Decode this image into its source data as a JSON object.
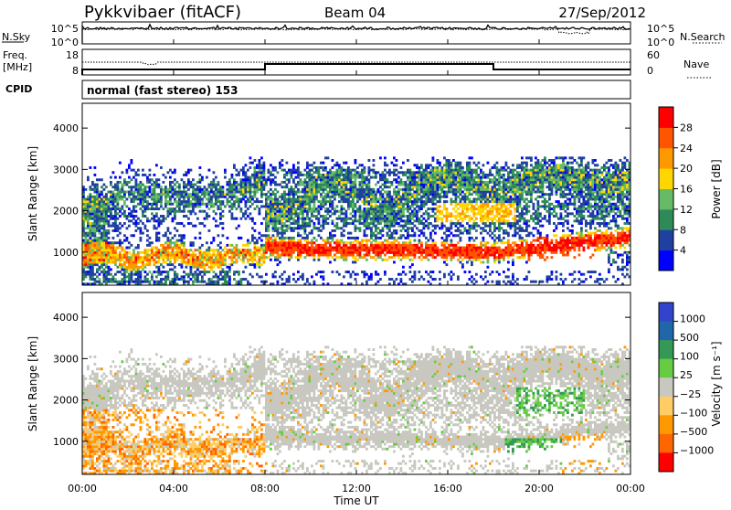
{
  "header": {
    "station": "Pykkvibaer (fitACF)",
    "beam": "Beam 04",
    "date": "27/Sep/2012"
  },
  "noise_panel": {
    "left_label": "N.Sky",
    "left_ticks": [
      "10^5",
      "10^0"
    ],
    "right_ticks": [
      "10^5",
      "10^0"
    ],
    "right_label": "N.Search"
  },
  "freq_panel": {
    "left_label_line1": "Freq.",
    "left_label_line2": "[MHz]",
    "left_ticks": [
      "18",
      "8"
    ],
    "right_ticks": [
      "60",
      "0"
    ],
    "right_label": "Nave"
  },
  "cpid": {
    "label": "CPID",
    "text": "normal (fast stereo) 153"
  },
  "colors": {
    "power_scale": [
      "#0000ff",
      "#2040a0",
      "#2e8b57",
      "#66bb66",
      "#ffd700",
      "#ff9900",
      "#ff5500",
      "#ff0000"
    ],
    "velocity_scale": [
      "#ff0000",
      "#ff6600",
      "#ff9900",
      "#ffcc66",
      "#c8c8c0",
      "#66cc44",
      "#339955",
      "#2266aa",
      "#3344cc"
    ]
  },
  "chart_data": [
    {
      "type": "heatmap",
      "name": "power",
      "ylabel": "Slant Range [km]",
      "ylim": [
        200,
        4600
      ],
      "y_ticks": [
        1000,
        2000,
        3000,
        4000
      ],
      "xlim": [
        0,
        24
      ],
      "colorbar_label": "Power [dB]",
      "colorbar_ticks": [
        "4",
        "8",
        "12",
        "16",
        "20",
        "24",
        "28"
      ],
      "colorbar_range": [
        0,
        32
      ]
    },
    {
      "type": "heatmap",
      "name": "velocity",
      "ylabel": "Slant Range [km]",
      "ylim": [
        200,
        4600
      ],
      "y_ticks": [
        1000,
        2000,
        3000,
        4000
      ],
      "xlim": [
        0,
        24
      ],
      "xlabel": "Time UT",
      "x_ticks": [
        "00:00",
        "04:00",
        "08:00",
        "12:00",
        "16:00",
        "20:00",
        "00:00"
      ],
      "colorbar_label": "Velocity [m s⁻¹]",
      "colorbar_ticks": [
        "1000",
        "500",
        "100",
        "25",
        "−25",
        "−100",
        "−500",
        "−1000"
      ]
    }
  ]
}
